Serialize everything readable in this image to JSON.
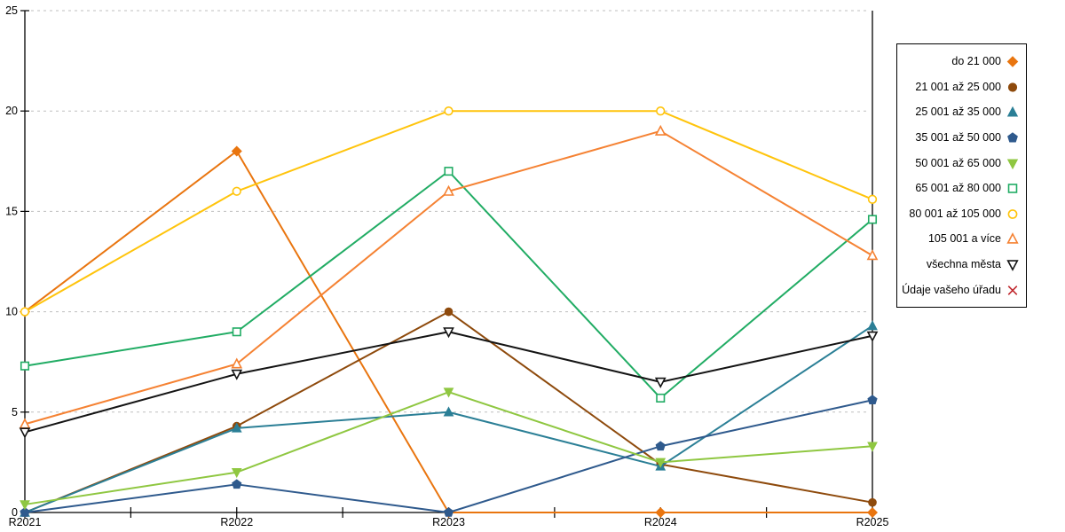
{
  "chart_data": {
    "type": "line",
    "title": "",
    "xlabel": "",
    "ylabel": "",
    "categories": [
      "R2021",
      "R2022",
      "R2023",
      "R2024",
      "R2025"
    ],
    "ylim": [
      0,
      25
    ],
    "yticks": [
      0,
      5,
      10,
      15,
      20,
      25
    ],
    "grid": "horizontal-dashed",
    "grid_color": "#BFBFBF",
    "axis_color": "#000000",
    "legend_position": "right",
    "series": [
      {
        "name": "do 21 000",
        "color": "#E9750F",
        "marker": "diamond",
        "filled": true,
        "values": [
          10,
          18,
          0,
          0,
          0
        ]
      },
      {
        "name": "21 001 až 25 000",
        "color": "#8E4A0C",
        "marker": "circle",
        "filled": true,
        "values": [
          0,
          4.3,
          10,
          2.4,
          0.5
        ]
      },
      {
        "name": "25 001 až 35 000",
        "color": "#2B7F96",
        "marker": "triangle-up",
        "filled": true,
        "values": [
          0,
          4.2,
          5,
          2.3,
          9.3
        ]
      },
      {
        "name": "35 001 až 50 000",
        "color": "#2F5A8D",
        "marker": "pentagon",
        "filled": true,
        "values": [
          0,
          1.4,
          0,
          3.3,
          5.6
        ]
      },
      {
        "name": "50 001 až 65 000",
        "color": "#8FC741",
        "marker": "triangle-down",
        "filled": true,
        "values": [
          0.4,
          2,
          6,
          2.5,
          3.3
        ]
      },
      {
        "name": "65 001 až 80 000",
        "color": "#21AC64",
        "marker": "square",
        "filled": false,
        "values": [
          7.3,
          9,
          17,
          5.7,
          14.6
        ]
      },
      {
        "name": "80 001 až 105 000",
        "color": "#FFC40C",
        "marker": "circle",
        "filled": false,
        "values": [
          10,
          16,
          20,
          20,
          15.6
        ]
      },
      {
        "name": "105 001 a více",
        "color": "#F58233",
        "marker": "triangle-up",
        "filled": false,
        "values": [
          4.4,
          7.4,
          16,
          19,
          12.8
        ]
      },
      {
        "name": "všechna města",
        "color": "#141414",
        "marker": "triangle-down",
        "filled": false,
        "values": [
          4,
          6.9,
          9,
          6.5,
          8.8
        ]
      },
      {
        "name": "Údaje vašeho úřadu",
        "color": "#C0272D",
        "marker": "x",
        "filled": false,
        "values": [
          null,
          null,
          null,
          null,
          null
        ]
      }
    ]
  }
}
